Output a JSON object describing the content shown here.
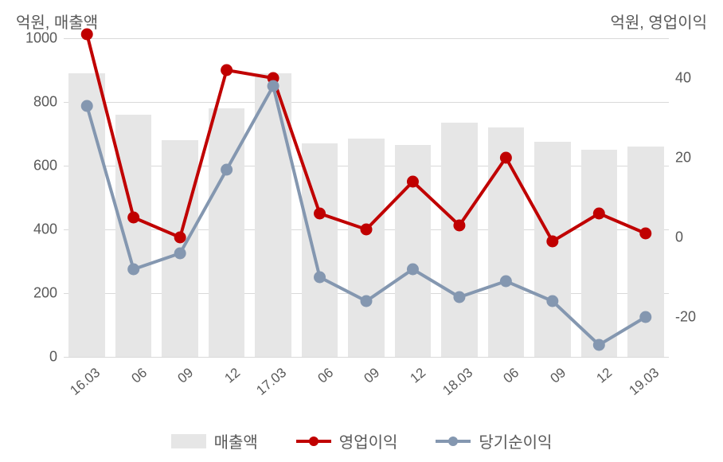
{
  "chart": {
    "background_color": "#ffffff",
    "grid_color": "#d9d9d9",
    "text_color": "#595959",
    "left_axis_label": "억원, 매출액",
    "right_axis_label": "억원, 영업이익",
    "left_y": {
      "min": 0,
      "max": 1000,
      "step": 200,
      "ticks": [
        0,
        200,
        400,
        600,
        800,
        1000
      ]
    },
    "right_y": {
      "min": -30,
      "max": 50,
      "ticks": [
        -20,
        0,
        20,
        40
      ]
    },
    "x_labels": [
      "16.03",
      "06",
      "09",
      "12",
      "17.03",
      "06",
      "09",
      "12",
      "18.03",
      "06",
      "09",
      "12",
      "19.03"
    ],
    "bar_series": {
      "name": "매출액",
      "color": "#e6e6e6",
      "values": [
        890,
        760,
        680,
        780,
        890,
        670,
        685,
        665,
        735,
        720,
        675,
        650,
        660
      ]
    },
    "line_series": [
      {
        "name": "영업이익",
        "color": "#c00000",
        "marker_fill": "#c00000",
        "line_width": 4,
        "marker_radius": 7,
        "values": [
          51,
          5,
          0,
          42,
          40,
          6,
          2,
          14,
          3,
          20,
          -1,
          6,
          1
        ]
      },
      {
        "name": "당기순이익",
        "color": "#8497b0",
        "marker_fill": "#8497b0",
        "line_width": 4,
        "marker_radius": 7,
        "values": [
          33,
          -8,
          -4,
          17,
          38,
          -10,
          -16,
          -8,
          -15,
          -11,
          -16,
          -27,
          -20
        ]
      }
    ],
    "legend": {
      "items": [
        {
          "type": "bar",
          "label": "매출액",
          "color": "#e6e6e6"
        },
        {
          "type": "line",
          "label": "영업이익",
          "color": "#c00000"
        },
        {
          "type": "line",
          "label": "당기순이익",
          "color": "#8497b0"
        }
      ]
    },
    "bar_width": 0.78,
    "label_fontsize": 20,
    "tick_fontsize": 18
  }
}
